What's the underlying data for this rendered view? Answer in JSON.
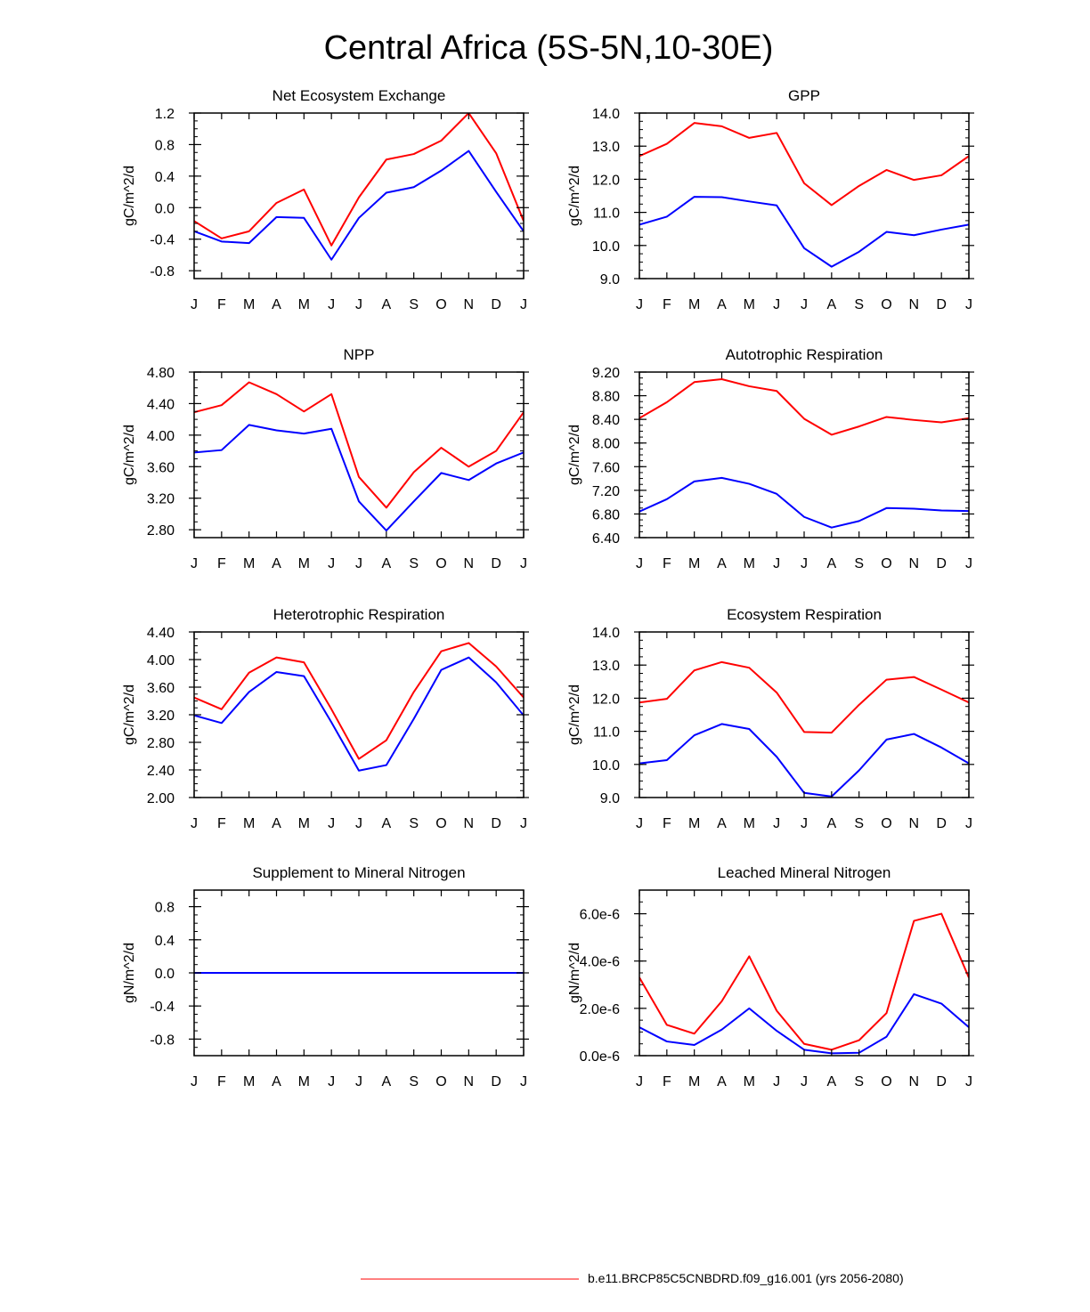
{
  "figure": {
    "title": "Central Africa (5S-5N,10-30E)",
    "legend": {
      "label": "b.e11.BRCP85C5CNBDRD.f09_g16.001 (yrs 2056-2080)",
      "color": "#ff0000",
      "placement": "bottom-center"
    }
  },
  "colors": {
    "red_series": "#ff0000",
    "blue_series": "#0000ff",
    "axes": "#000000"
  },
  "chart_data": [
    {
      "type": "line",
      "title": "Net Ecosystem Exchange",
      "ylabel": "gC/m^2/d",
      "categories": [
        "J",
        "F",
        "M",
        "A",
        "M",
        "J",
        "J",
        "A",
        "S",
        "O",
        "N",
        "D",
        "J"
      ],
      "ylim": [
        -0.9,
        1.2
      ],
      "yticks": [
        -0.8,
        -0.4,
        0.0,
        0.4,
        0.8,
        1.2
      ],
      "ytick_labels": [
        "-0.8",
        "-0.4",
        "0.0",
        "0.4",
        "0.8",
        "1.2"
      ],
      "series": [
        {
          "name": "red",
          "color": "#ff0000",
          "values": [
            -0.17,
            -0.39,
            -0.3,
            0.06,
            0.23,
            -0.48,
            0.13,
            0.61,
            0.68,
            0.85,
            1.2,
            0.69,
            -0.17
          ]
        },
        {
          "name": "blue",
          "color": "#0000ff",
          "values": [
            -0.3,
            -0.43,
            -0.45,
            -0.12,
            -0.13,
            -0.66,
            -0.13,
            0.19,
            0.26,
            0.47,
            0.72,
            0.2,
            -0.3
          ]
        }
      ]
    },
    {
      "type": "line",
      "title": "GPP",
      "ylabel": "gC/m^2/d",
      "categories": [
        "J",
        "F",
        "M",
        "A",
        "M",
        "J",
        "J",
        "A",
        "S",
        "O",
        "N",
        "D",
        "J"
      ],
      "ylim": [
        9.0,
        14.0
      ],
      "yticks": [
        9.0,
        10.0,
        11.0,
        12.0,
        13.0,
        14.0
      ],
      "ytick_labels": [
        "9.0",
        "10.0",
        "11.0",
        "12.0",
        "13.0",
        "14.0"
      ],
      "series": [
        {
          "name": "red",
          "color": "#ff0000",
          "values": [
            12.7,
            13.07,
            13.7,
            13.6,
            13.25,
            13.4,
            11.88,
            11.22,
            11.8,
            12.28,
            11.98,
            12.12,
            12.7
          ]
        },
        {
          "name": "blue",
          "color": "#0000ff",
          "values": [
            10.63,
            10.87,
            11.47,
            11.46,
            11.33,
            11.21,
            9.92,
            9.36,
            9.81,
            10.41,
            10.31,
            10.48,
            10.63
          ]
        }
      ]
    },
    {
      "type": "line",
      "title": "NPP",
      "ylabel": "gC/m^2/d",
      "categories": [
        "J",
        "F",
        "M",
        "A",
        "M",
        "J",
        "J",
        "A",
        "S",
        "O",
        "N",
        "D",
        "J"
      ],
      "ylim": [
        2.7,
        4.8
      ],
      "yticks": [
        2.8,
        3.2,
        3.6,
        4.0,
        4.4,
        4.8
      ],
      "ytick_labels": [
        "2.80",
        "3.20",
        "3.60",
        "4.00",
        "4.40",
        "4.80"
      ],
      "series": [
        {
          "name": "red",
          "color": "#ff0000",
          "values": [
            4.29,
            4.38,
            4.67,
            4.52,
            4.3,
            4.52,
            3.47,
            3.08,
            3.53,
            3.84,
            3.6,
            3.8,
            4.29
          ]
        },
        {
          "name": "blue",
          "color": "#0000ff",
          "values": [
            3.78,
            3.81,
            4.13,
            4.06,
            4.02,
            4.08,
            3.16,
            2.79,
            3.16,
            3.52,
            3.43,
            3.64,
            3.78
          ]
        }
      ]
    },
    {
      "type": "line",
      "title": "Autotrophic Respiration",
      "ylabel": "gC/m^2/d",
      "categories": [
        "J",
        "F",
        "M",
        "A",
        "M",
        "J",
        "J",
        "A",
        "S",
        "O",
        "N",
        "D",
        "J"
      ],
      "ylim": [
        6.4,
        9.2
      ],
      "yticks": [
        6.4,
        6.8,
        7.2,
        7.6,
        8.0,
        8.4,
        8.8,
        9.2
      ],
      "ytick_labels": [
        "6.40",
        "6.80",
        "7.20",
        "7.60",
        "8.00",
        "8.40",
        "8.80",
        "9.20"
      ],
      "series": [
        {
          "name": "red",
          "color": "#ff0000",
          "values": [
            8.42,
            8.69,
            9.03,
            9.08,
            8.96,
            8.88,
            8.41,
            8.14,
            8.28,
            8.44,
            8.39,
            8.35,
            8.42
          ]
        },
        {
          "name": "blue",
          "color": "#0000ff",
          "values": [
            6.84,
            7.05,
            7.35,
            7.41,
            7.31,
            7.14,
            6.75,
            6.57,
            6.68,
            6.9,
            6.89,
            6.86,
            6.85
          ]
        }
      ]
    },
    {
      "type": "line",
      "title": "Heterotrophic Respiration",
      "ylabel": "gC/m^2/d",
      "categories": [
        "J",
        "F",
        "M",
        "A",
        "M",
        "J",
        "J",
        "A",
        "S",
        "O",
        "N",
        "D",
        "J"
      ],
      "ylim": [
        2.0,
        4.4
      ],
      "yticks": [
        2.0,
        2.4,
        2.8,
        3.2,
        3.6,
        4.0,
        4.4
      ],
      "ytick_labels": [
        "2.00",
        "2.40",
        "2.80",
        "3.20",
        "3.60",
        "4.00",
        "4.40"
      ],
      "series": [
        {
          "name": "red",
          "color": "#ff0000",
          "values": [
            3.45,
            3.28,
            3.81,
            4.03,
            3.96,
            3.28,
            2.56,
            2.83,
            3.53,
            4.12,
            4.24,
            3.9,
            3.45
          ]
        },
        {
          "name": "blue",
          "color": "#0000ff",
          "values": [
            3.19,
            3.08,
            3.53,
            3.82,
            3.76,
            3.09,
            2.39,
            2.47,
            3.14,
            3.85,
            4.03,
            3.67,
            3.19
          ]
        }
      ]
    },
    {
      "type": "line",
      "title": "Ecosystem Respiration",
      "ylabel": "gC/m^2/d",
      "categories": [
        "J",
        "F",
        "M",
        "A",
        "M",
        "J",
        "J",
        "A",
        "S",
        "O",
        "N",
        "D",
        "J"
      ],
      "ylim": [
        9.0,
        14.0
      ],
      "yticks": [
        9.0,
        10.0,
        11.0,
        12.0,
        13.0,
        14.0
      ],
      "ytick_labels": [
        "9.0",
        "10.0",
        "11.0",
        "12.0",
        "13.0",
        "14.0"
      ],
      "series": [
        {
          "name": "red",
          "color": "#ff0000",
          "values": [
            11.87,
            11.98,
            12.84,
            13.09,
            12.92,
            12.17,
            10.98,
            10.96,
            11.8,
            12.56,
            12.64,
            12.26,
            11.87
          ]
        },
        {
          "name": "blue",
          "color": "#0000ff",
          "values": [
            10.03,
            10.13,
            10.88,
            11.22,
            11.07,
            10.23,
            9.14,
            9.03,
            9.82,
            10.75,
            10.92,
            10.51,
            10.03
          ]
        }
      ]
    },
    {
      "type": "line",
      "title": "Supplement to Mineral Nitrogen",
      "ylabel": "gN/m^2/d",
      "categories": [
        "J",
        "F",
        "M",
        "A",
        "M",
        "J",
        "J",
        "A",
        "S",
        "O",
        "N",
        "D",
        "J"
      ],
      "ylim": [
        -1.0,
        1.0
      ],
      "yticks": [
        -0.8,
        -0.4,
        0.0,
        0.4,
        0.8
      ],
      "ytick_labels": [
        "-0.8",
        "-0.4",
        "0.0",
        "0.4",
        "0.8"
      ],
      "series": [
        {
          "name": "red",
          "color": "#ff0000",
          "values": [
            0,
            0,
            0,
            0,
            0,
            0,
            0,
            0,
            0,
            0,
            0,
            0,
            0
          ]
        },
        {
          "name": "blue",
          "color": "#0000ff",
          "values": [
            0,
            0,
            0,
            0,
            0,
            0,
            0,
            0,
            0,
            0,
            0,
            0,
            0
          ]
        }
      ]
    },
    {
      "type": "line",
      "title": "Leached Mineral Nitrogen",
      "ylabel": "gN/m^2/d",
      "categories": [
        "J",
        "F",
        "M",
        "A",
        "M",
        "J",
        "J",
        "A",
        "S",
        "O",
        "N",
        "D",
        "J"
      ],
      "ylim": [
        0,
        7e-06
      ],
      "yticks": [
        0,
        2e-06,
        4e-06,
        6e-06
      ],
      "ytick_labels": [
        "0.0e-6",
        "2.0e-6",
        "4.0e-6",
        "6.0e-6"
      ],
      "series": [
        {
          "name": "red",
          "color": "#ff0000",
          "values": [
            3.3e-06,
            1.3e-06,
            9.3e-07,
            2.3e-06,
            4.2e-06,
            1.9e-06,
            5e-07,
            2.5e-07,
            6.5e-07,
            1.8e-06,
            5.7e-06,
            6e-06,
            3.3e-06
          ]
        },
        {
          "name": "blue",
          "color": "#0000ff",
          "values": [
            1.2e-06,
            6e-07,
            4.5e-07,
            1.1e-06,
            2e-06,
            1.05e-06,
            2.5e-07,
            1e-07,
            1.2e-07,
            8e-07,
            2.6e-06,
            2.2e-06,
            1.2e-06
          ]
        }
      ]
    }
  ]
}
